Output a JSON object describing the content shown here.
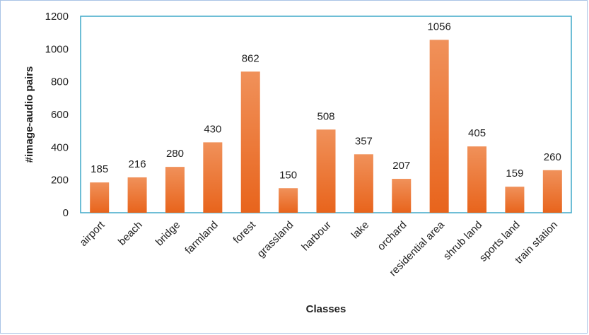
{
  "chart_data": {
    "type": "bar",
    "title": "",
    "xlabel": "Classes",
    "ylabel": "#image-audio pairs",
    "ylim": [
      0,
      1200
    ],
    "yticks": [
      0,
      200,
      400,
      600,
      800,
      1000,
      1200
    ],
    "categories": [
      "airport",
      "beach",
      "bridge",
      "farmland",
      "forest",
      "grassland",
      "harbour",
      "lake",
      "orchard",
      "residential area",
      "shrub land",
      "sports land",
      "train station"
    ],
    "series": [
      {
        "values": [
          185,
          216,
          280,
          430,
          862,
          150,
          508,
          357,
          207,
          1056,
          405,
          159,
          260
        ]
      }
    ],
    "grid": false,
    "data_labels": true,
    "colors": {
      "bar_top": "#f0915a",
      "bar_bottom": "#e8641c",
      "plot_border": "#3fa9c9",
      "frame_border": "#a9c4e6"
    }
  }
}
